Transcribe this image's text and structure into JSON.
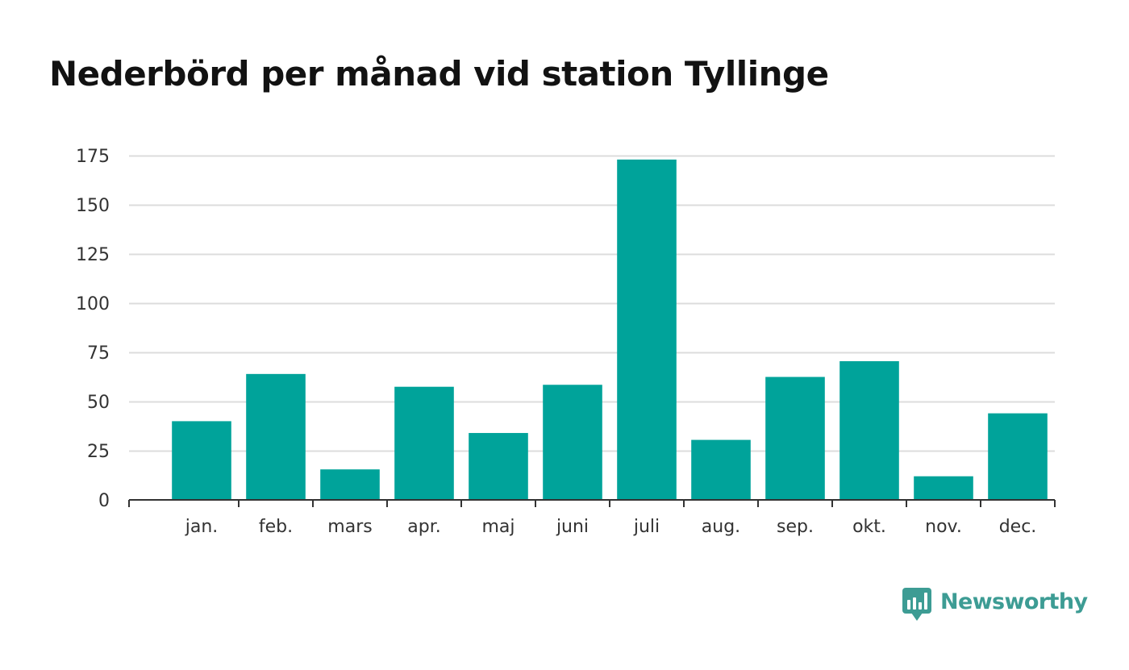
{
  "colors": {
    "bar": "#00a39a",
    "grid": "#dcdcdc",
    "axis": "#333333",
    "title": "#121212",
    "brand": "#3d9c94",
    "background": "#ffffff"
  },
  "brand": {
    "name": "Newsworthy",
    "icon": "bar-chart-speech-bubble-icon"
  },
  "chart_data": {
    "type": "bar",
    "title": "Nederbörd per månad vid station Tyllinge",
    "xlabel": "",
    "ylabel": "",
    "categories": [
      "jan.",
      "feb.",
      "mars",
      "apr.",
      "maj",
      "juni",
      "juli",
      "aug.",
      "sep.",
      "okt.",
      "nov.",
      "dec."
    ],
    "values": [
      40,
      64,
      15.5,
      57.5,
      34,
      58.5,
      173,
      30.5,
      62.5,
      70.5,
      12,
      44
    ],
    "ylim": [
      0,
      175
    ],
    "yticks": [
      0,
      25,
      50,
      75,
      100,
      125,
      150,
      175
    ],
    "grid": true,
    "legend": "none"
  }
}
